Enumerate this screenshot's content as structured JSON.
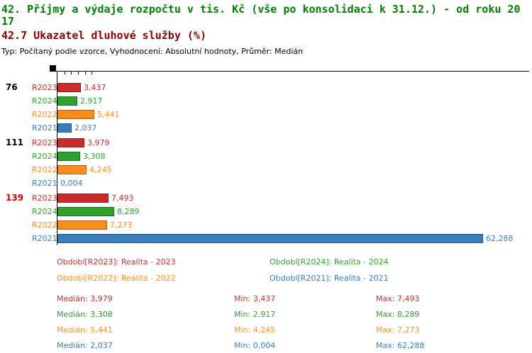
{
  "header": {
    "title_line1": "42. Příjmy a výdaje rozpočtu v tis. Kč (vše po konsolidaci k 31.12.) - od roku 20",
    "title_line2": "17",
    "subtitle": "42.7 Ukazatel dluhové služby (%)",
    "meta": "Typ: Počítaný podle vzorce, Vyhodnocení: Absolutní hodnoty, Průměr: Medián",
    "title_color": "#008000",
    "subtitle_color": "#8b0000"
  },
  "chart_data": {
    "type": "bar",
    "orientation": "horizontal",
    "title": "42.7 Ukazatel dluhové služby (%)",
    "xlabel": "",
    "ylabel": "",
    "x_min": 0,
    "x_max_visible": 62.288,
    "decimal_format": "comma",
    "top_axis_ticks_units": [
      1,
      2,
      3,
      4,
      5
    ],
    "row_order_in_group": [
      "R2023",
      "R2024",
      "R2022",
      "R2021"
    ],
    "groups": [
      {
        "label": "76",
        "label_color": "#000000"
      },
      {
        "label": "111",
        "label_color": "#000000"
      },
      {
        "label": "139",
        "label_color": "#cc0000"
      }
    ],
    "series": [
      {
        "name": "R2023",
        "color": "#cc2b2b",
        "border": "#8a1c1c",
        "values": [
          3.437,
          3.979,
          7.493
        ],
        "value_labels": [
          "3,437",
          "3,979",
          "7,493"
        ]
      },
      {
        "name": "R2024",
        "color": "#2fa12f",
        "border": "#1d6b1d",
        "values": [
          2.917,
          3.308,
          8.289
        ],
        "value_labels": [
          "2,917",
          "3,308",
          "8,289"
        ]
      },
      {
        "name": "R2022",
        "color": "#ff8c1a",
        "border": "#b35f00",
        "values": [
          5.441,
          4.245,
          7.273
        ],
        "value_labels": [
          "5,441",
          "4,245",
          "7,273"
        ]
      },
      {
        "name": "R2021",
        "color": "#3a7dbd",
        "border": "#23568a",
        "values": [
          2.037,
          0.004,
          62.288
        ],
        "value_labels": [
          "2,037",
          "0,004",
          "62,288"
        ]
      }
    ]
  },
  "legend": {
    "items": [
      {
        "series": "R2023",
        "label": "Období[R2023]: Realita - 2023"
      },
      {
        "series": "R2024",
        "label": "Období[R2024]: Realita - 2024"
      },
      {
        "series": "R2022",
        "label": "Období[R2022]: Realita - 2022"
      },
      {
        "series": "R2021",
        "label": "Období[R2021]: Realita - 2021"
      }
    ]
  },
  "stats": {
    "median_label": "Medián",
    "min_label": "Min",
    "max_label": "Max",
    "rows": [
      {
        "series": "R2023",
        "median": "3,979",
        "min": "3,437",
        "max": "7,493"
      },
      {
        "series": "R2024",
        "median": "3,308",
        "min": "2,917",
        "max": "8,289"
      },
      {
        "series": "R2022",
        "median": "5,441",
        "min": "4,245",
        "max": "7,273"
      },
      {
        "series": "R2021",
        "median": "2,037",
        "min": "0,004",
        "max": "62,288"
      }
    ]
  }
}
